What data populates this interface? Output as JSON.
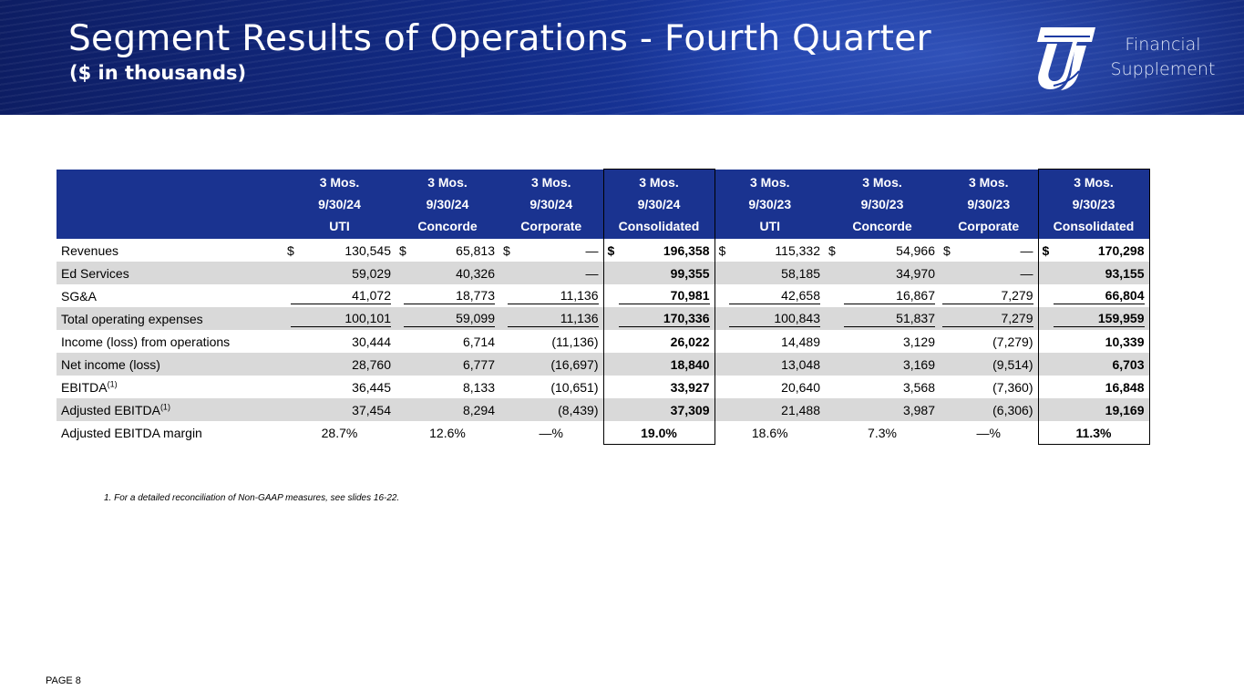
{
  "header": {
    "title": "Segment Results of Operations - Fourth Quarter",
    "subtitle": "($ in thousands)",
    "logo_icon": "uti-logo-icon",
    "logo_text_line1": "Financial",
    "logo_text_line2": "Supplement"
  },
  "colors": {
    "header_blue": "#122b86",
    "table_header_blue": "#1a3390",
    "row_shade": "#d9d9d9"
  },
  "table": {
    "columns": [
      {
        "period": "3 Mos.",
        "date": "9/30/24",
        "segment": "UTI"
      },
      {
        "period": "3 Mos.",
        "date": "9/30/24",
        "segment": "Concorde"
      },
      {
        "period": "3 Mos.",
        "date": "9/30/24",
        "segment": "Corporate"
      },
      {
        "period": "3 Mos.",
        "date": "9/30/24",
        "segment": "Consolidated"
      },
      {
        "period": "3 Mos.",
        "date": "9/30/23",
        "segment": "UTI"
      },
      {
        "period": "3 Mos.",
        "date": "9/30/23",
        "segment": "Concorde"
      },
      {
        "period": "3 Mos.",
        "date": "9/30/23",
        "segment": "Corporate"
      },
      {
        "period": "3 Mos.",
        "date": "9/30/23",
        "segment": "Consolidated"
      }
    ],
    "currency_symbol": "$",
    "rows": [
      {
        "label": "Revenues",
        "sup": "",
        "values": [
          "130,545",
          "65,813",
          "—",
          "196,358",
          "115,332",
          "54,966",
          "—",
          "170,298"
        ]
      },
      {
        "label": "Ed Services",
        "sup": "",
        "values": [
          "59,029",
          "40,326",
          "—",
          "99,355",
          "58,185",
          "34,970",
          "—",
          "93,155"
        ]
      },
      {
        "label": "SG&A",
        "sup": "",
        "values": [
          "41,072",
          "18,773",
          "11,136",
          "70,981",
          "42,658",
          "16,867",
          "7,279",
          "66,804"
        ]
      },
      {
        "label": "Total operating expenses",
        "sup": "",
        "values": [
          "100,101",
          "59,099",
          "11,136",
          "170,336",
          "100,843",
          "51,837",
          "7,279",
          "159,959"
        ]
      },
      {
        "label": "Income (loss) from operations",
        "sup": "",
        "values": [
          "30,444",
          "6,714",
          "(11,136)",
          "26,022",
          "14,489",
          "3,129",
          "(7,279)",
          "10,339"
        ]
      },
      {
        "label": "Net income (loss)",
        "sup": "",
        "values": [
          "28,760",
          "6,777",
          "(16,697)",
          "18,840",
          "13,048",
          "3,169",
          "(9,514)",
          "6,703"
        ]
      },
      {
        "label": "EBITDA",
        "sup": "(1)",
        "values": [
          "36,445",
          "8,133",
          "(10,651)",
          "33,927",
          "20,640",
          "3,568",
          "(7,360)",
          "16,848"
        ]
      },
      {
        "label": "Adjusted EBITDA",
        "sup": "(1)",
        "values": [
          "37,454",
          "8,294",
          "(8,439)",
          "37,309",
          "21,488",
          "3,987",
          "(6,306)",
          "19,169"
        ]
      },
      {
        "label": "Adjusted EBITDA margin",
        "sup": "",
        "values": [
          "28.7%",
          "12.6%",
          "—%",
          "19.0%",
          "18.6%",
          "7.3%",
          "—%",
          "11.3%"
        ]
      }
    ]
  },
  "footnote": "1.    For a detailed reconciliation of Non-GAAP measures, see slides 16-22.",
  "page_number": "PAGE 8"
}
